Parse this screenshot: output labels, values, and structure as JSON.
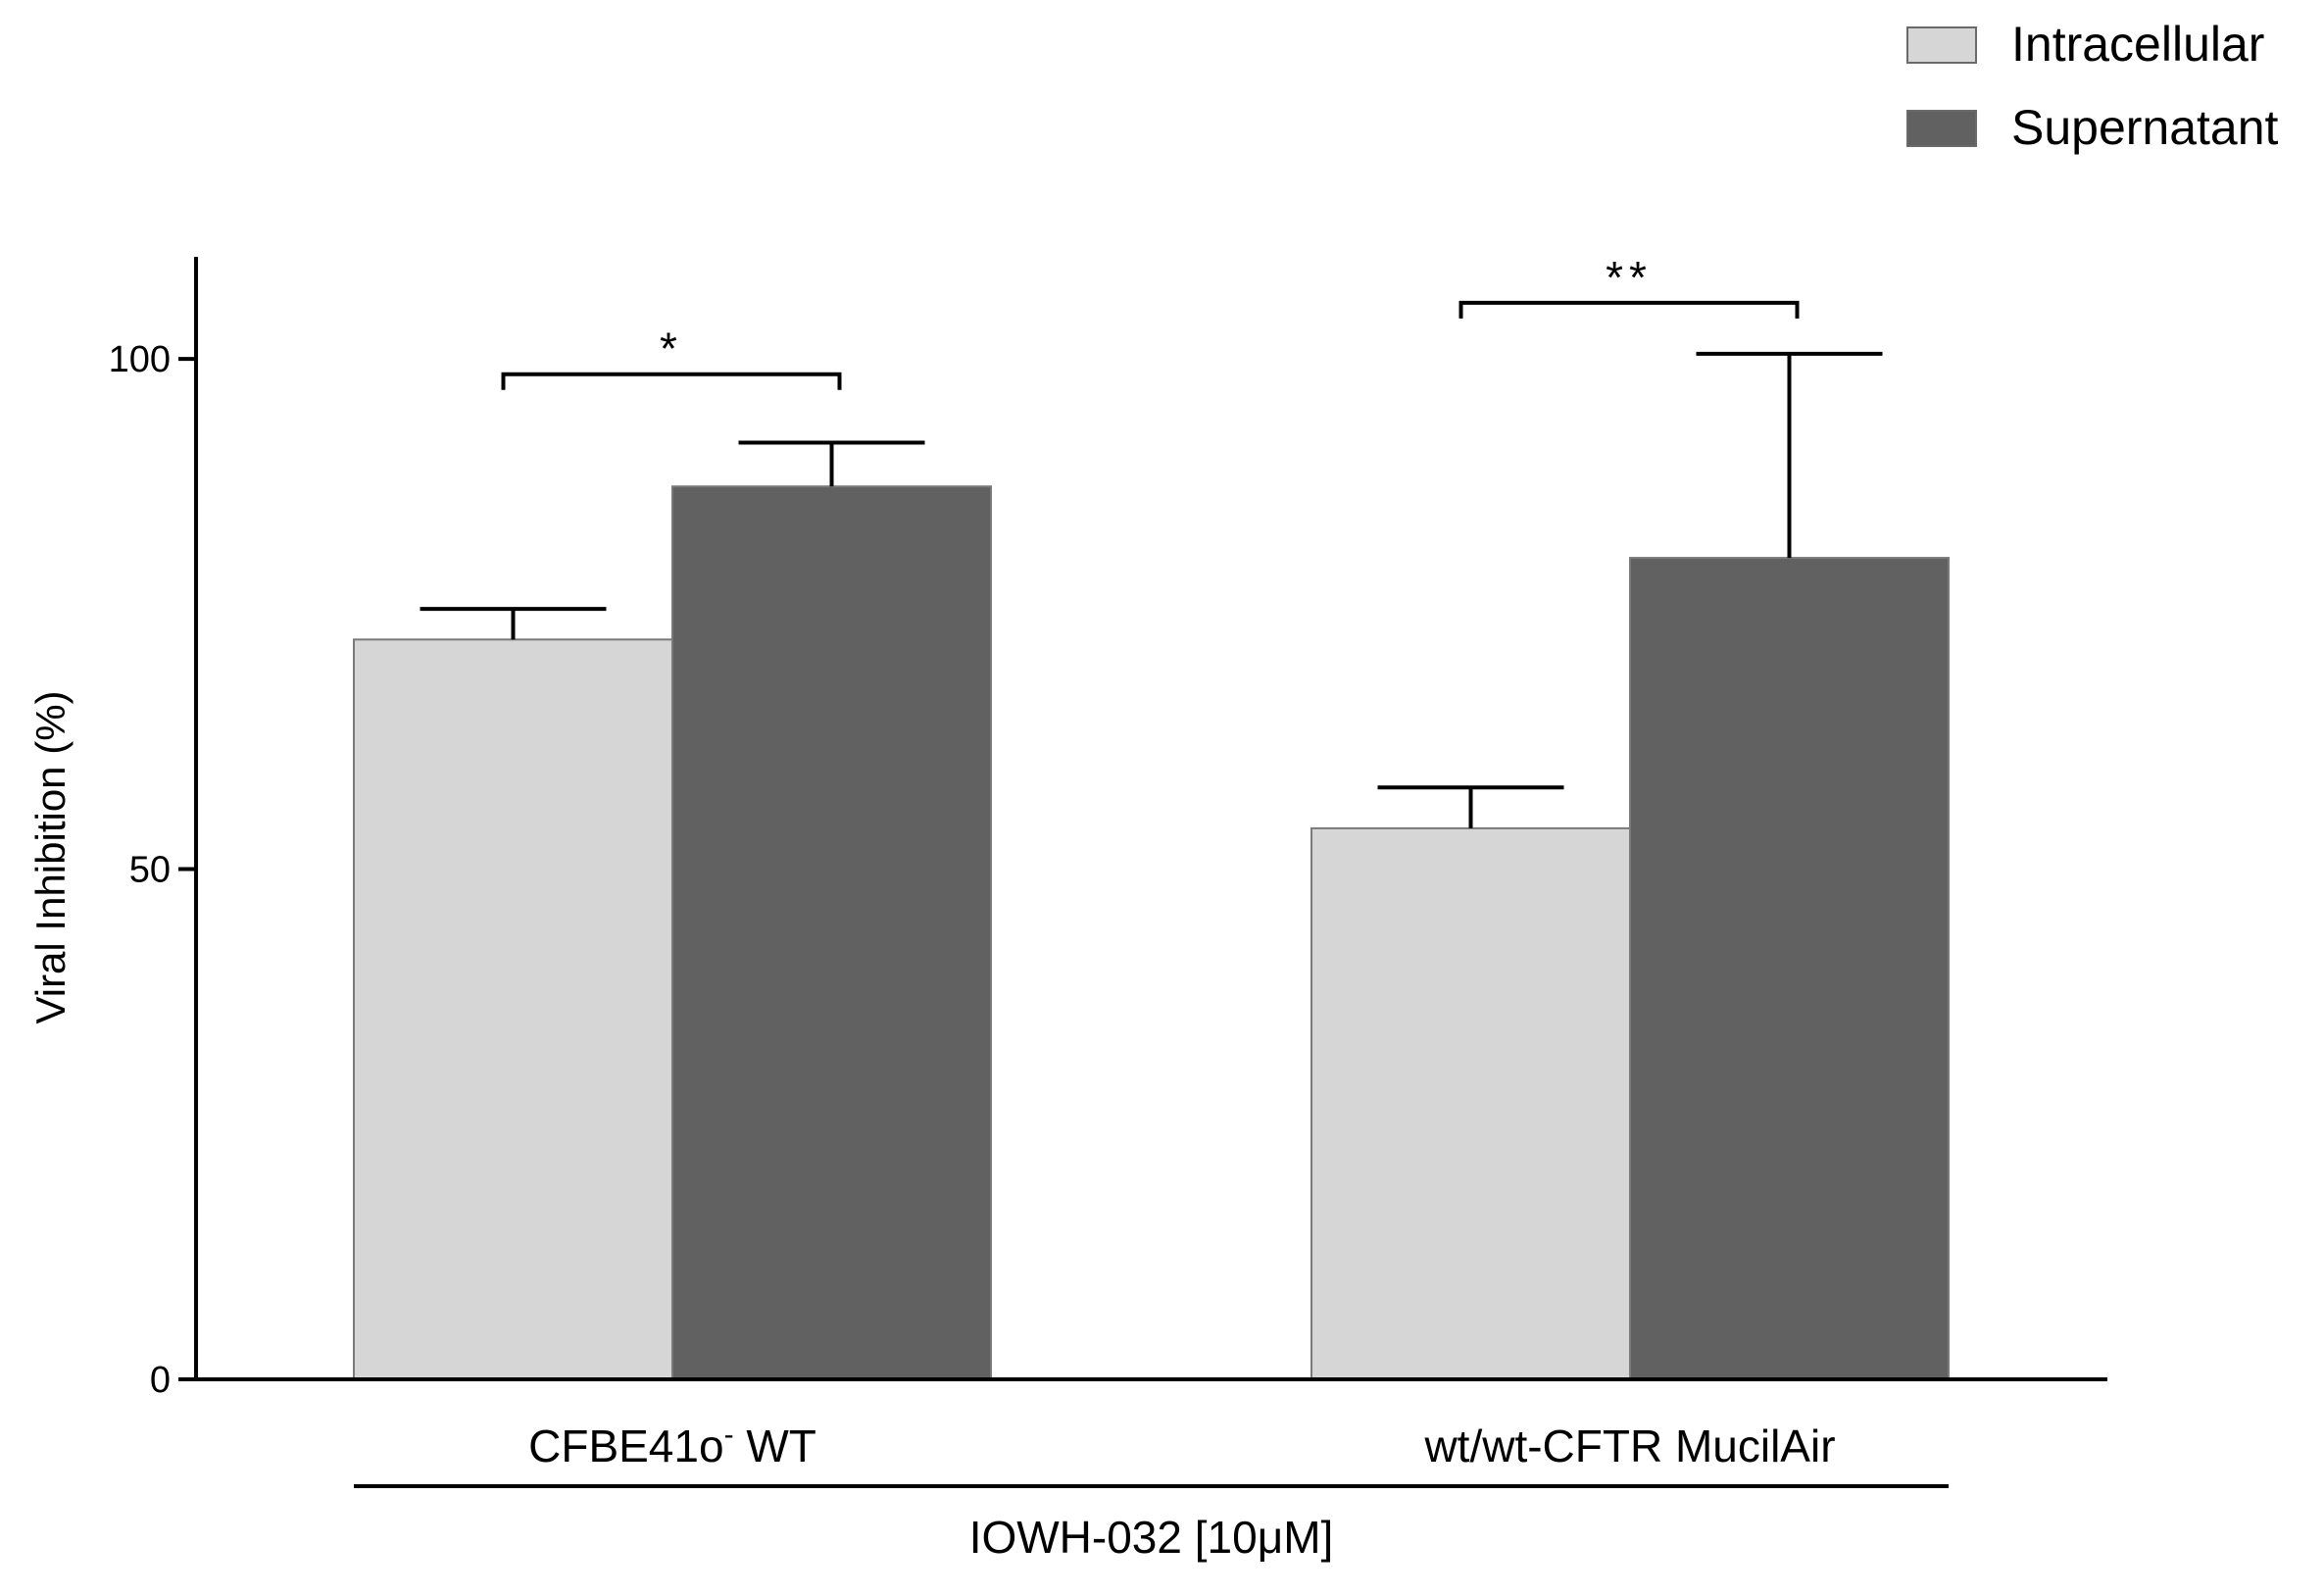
{
  "chart_data": {
    "type": "bar",
    "title": "",
    "xlabel": "",
    "ylabel": "Viral Inhibition (%)",
    "ylim": [
      0,
      110
    ],
    "yticks": [
      0,
      50,
      100
    ],
    "grid": false,
    "legend_position": "top-right",
    "categories": [
      {
        "label": "CFBE41o",
        "superscript": "-",
        "suffix": " WT"
      },
      {
        "label": "wt/wt-CFTR MucilAir",
        "superscript": "",
        "suffix": ""
      }
    ],
    "series": [
      {
        "name": "Intracellular",
        "color": "#d6d6d6",
        "values": [
          72.5,
          54
        ],
        "errors": [
          3,
          4
        ]
      },
      {
        "name": "Supernatant",
        "color": "#616161",
        "values": [
          87.5,
          80.5
        ],
        "errors": [
          4.3,
          20
        ]
      }
    ],
    "significance": [
      {
        "category": 0,
        "label": "*",
        "level": 98.5
      },
      {
        "category": 1,
        "label": "**",
        "level": 105.5
      }
    ],
    "group_label": {
      "prefix": "IOWH-032 [10",
      "mu": "μ",
      "suffix": "M]"
    }
  }
}
